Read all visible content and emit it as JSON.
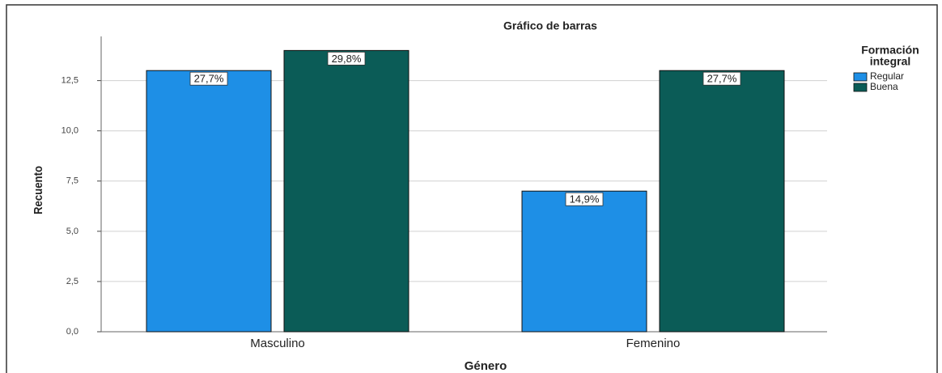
{
  "chart_data": {
    "type": "bar",
    "title": "Gráfico de barras",
    "x_label": "Género",
    "y_label": "Recuento",
    "legend_title": [
      "Formación",
      "integral"
    ],
    "categories": [
      "Masculino",
      "Femenino"
    ],
    "series": [
      {
        "name": "Regular",
        "color": "#1e8fe6",
        "values": [
          13,
          7
        ],
        "percent_values": [
          27.7,
          14.9
        ],
        "percent_labels": [
          "27,7%",
          "14,9%"
        ]
      },
      {
        "name": "Buena",
        "color": "#0b5c57",
        "values": [
          14,
          13
        ],
        "percent_values": [
          29.8,
          27.7
        ],
        "percent_labels": [
          "29,8%",
          "27,7%"
        ]
      }
    ],
    "ylim": [
      0,
      14.7
    ],
    "yticks": [
      {
        "value": 0,
        "label": "0,0"
      },
      {
        "value": 2.5,
        "label": "2,5"
      },
      {
        "value": 5,
        "label": "5,0"
      },
      {
        "value": 7.5,
        "label": "7,5"
      },
      {
        "value": 10,
        "label": "10,0"
      },
      {
        "value": 12.5,
        "label": "12,5"
      }
    ],
    "grid": true
  }
}
